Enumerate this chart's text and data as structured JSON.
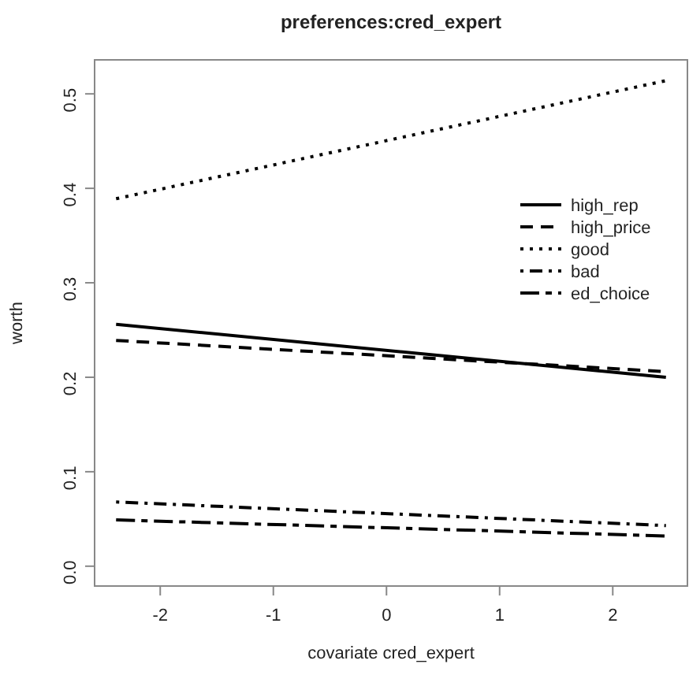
{
  "chart_data": {
    "type": "line",
    "title": "preferences:cred_expert",
    "xlabel": "covariate cred_expert",
    "ylabel": "worth",
    "x": [
      -2.39,
      2.47
    ],
    "series": [
      {
        "name": "high_rep",
        "color": "#000000",
        "line_style": "solid",
        "values": [
          0.256,
          0.2
        ]
      },
      {
        "name": "high_price",
        "color": "#000000",
        "line_style": "dashed",
        "values": [
          0.239,
          0.206
        ]
      },
      {
        "name": "good",
        "color": "#000000",
        "line_style": "dotted",
        "values": [
          0.389,
          0.514
        ]
      },
      {
        "name": "bad",
        "color": "#000000",
        "line_style": "dotdash",
        "values": [
          0.068,
          0.043
        ]
      },
      {
        "name": "ed_choice",
        "color": "#000000",
        "line_style": "longdash",
        "values": [
          0.049,
          0.032
        ]
      }
    ],
    "xlim": [
      -2.58,
      2.66
    ],
    "ylim": [
      -0.021,
      0.536
    ],
    "xticks": [
      -2,
      -1,
      0,
      1,
      2
    ],
    "yticks": [
      {
        "value": 0,
        "label": "0.0"
      },
      0.1,
      0.2,
      0.3,
      0.4,
      0.5
    ],
    "legend": "right",
    "grid": false,
    "marker": "none"
  }
}
